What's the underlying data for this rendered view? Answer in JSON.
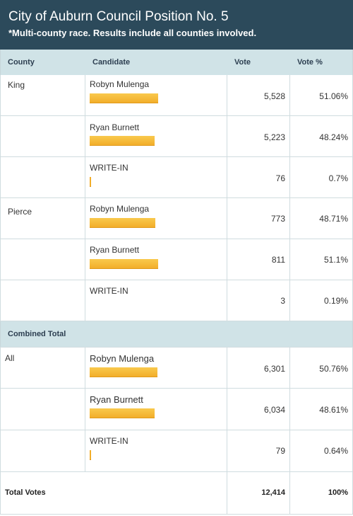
{
  "header": {
    "title": "City of Auburn Council Position No. 5",
    "subtitle": "*Multi-county race. Results include all counties involved."
  },
  "columns": {
    "county": "County",
    "candidate": "Candidate",
    "vote": "Vote",
    "vote_pct": "Vote %"
  },
  "rows": [
    {
      "county": "King",
      "candidate": "Robyn Mulenga",
      "vote": "5,528",
      "pct": "51.06%",
      "bar_pct": 51.06
    },
    {
      "county": "",
      "candidate": "Ryan Burnett",
      "vote": "5,223",
      "pct": "48.24%",
      "bar_pct": 48.24
    },
    {
      "county": "",
      "candidate": "WRITE-IN",
      "vote": "76",
      "pct": "0.7%",
      "bar_pct": 0.7
    },
    {
      "county": "Pierce",
      "candidate": "Robyn Mulenga",
      "vote": "773",
      "pct": "48.71%",
      "bar_pct": 48.71
    },
    {
      "county": "",
      "candidate": "Ryan Burnett",
      "vote": "811",
      "pct": "51.1%",
      "bar_pct": 51.1
    },
    {
      "county": "",
      "candidate": "WRITE-IN",
      "vote": "3",
      "pct": "0.19%",
      "bar_pct": 0.19
    }
  ],
  "combined": {
    "label": "Combined Total",
    "rows": [
      {
        "county": "All",
        "candidate": "Robyn Mulenga",
        "vote": "6,301",
        "pct": "50.76%",
        "bar_pct": 50.76
      },
      {
        "county": "",
        "candidate": "Ryan Burnett",
        "vote": "6,034",
        "pct": "48.61%",
        "bar_pct": 48.61
      },
      {
        "county": "",
        "candidate": "WRITE-IN",
        "vote": "79",
        "pct": "0.64%",
        "bar_pct": 0.64
      }
    ]
  },
  "totals": {
    "label": "Total Votes",
    "vote": "12,414",
    "pct": "100%"
  },
  "colors": {
    "header_bg": "#2c4a5b",
    "column_header_bg": "#d0e3e7",
    "bar": "#f5b835"
  }
}
